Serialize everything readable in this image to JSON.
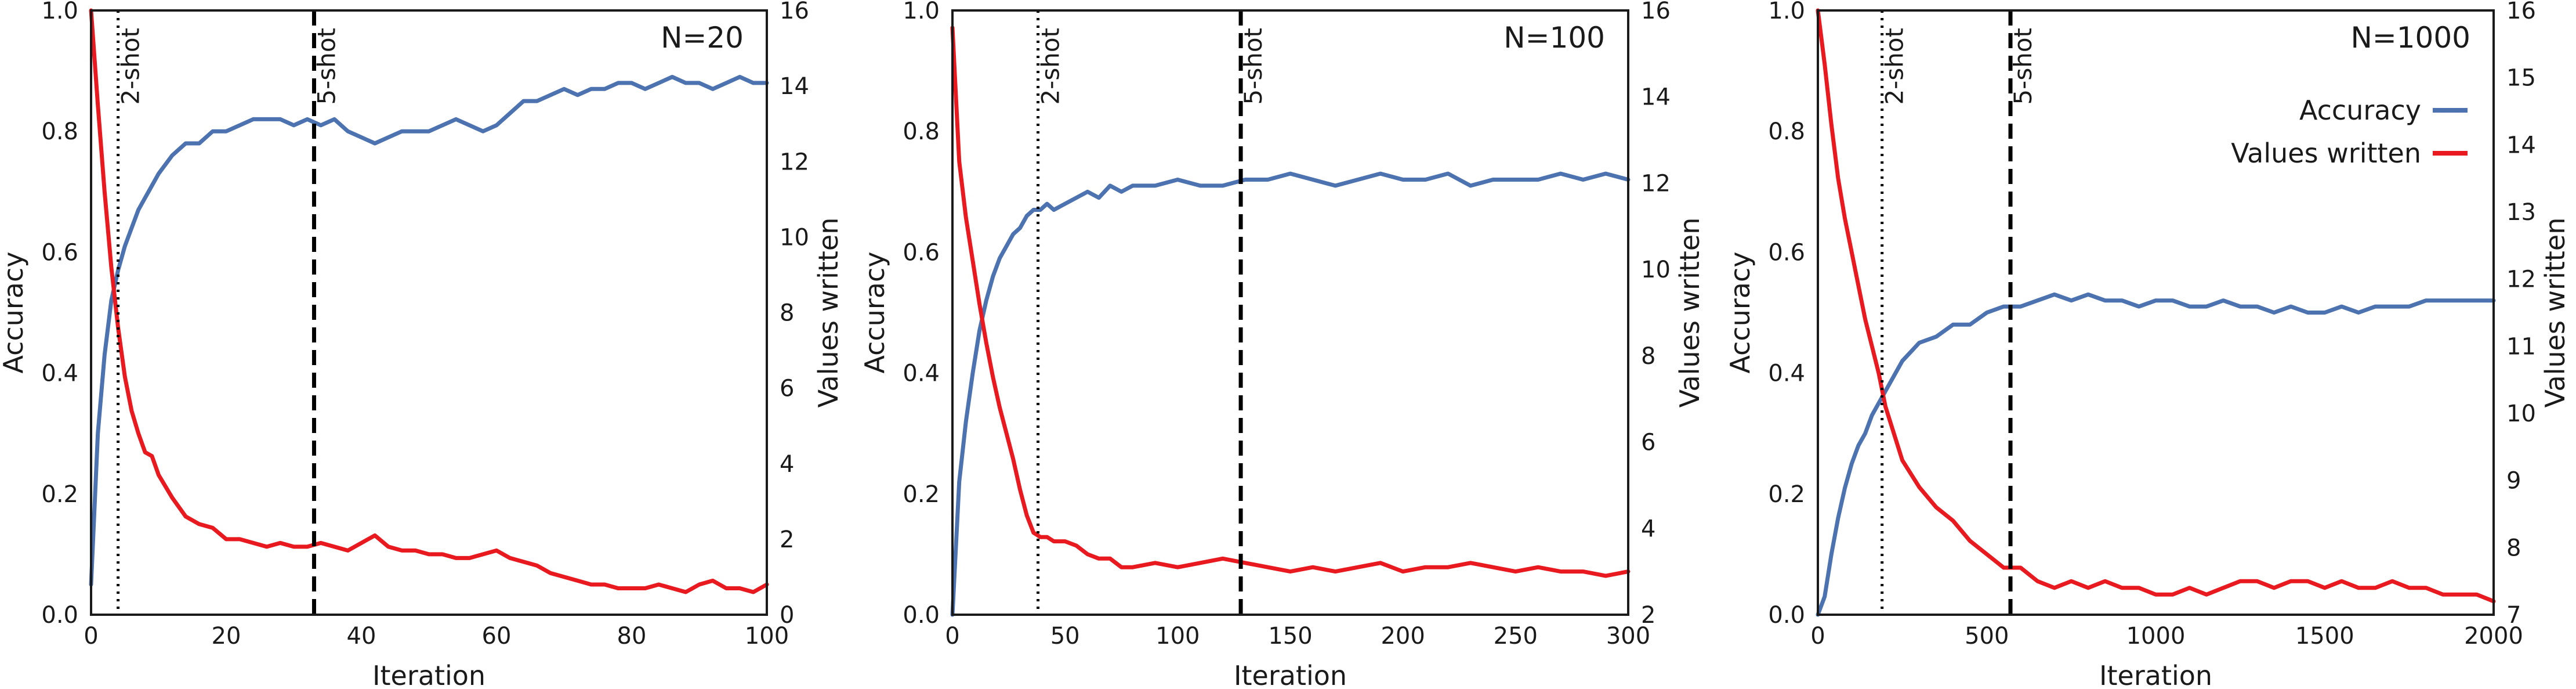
{
  "colors": {
    "accuracy": "#4c72b0",
    "values_written": "#e8191f",
    "axes": "#1a1a1a",
    "background": "#ffffff"
  },
  "chart_data": [
    {
      "type": "line",
      "title": "N=20",
      "xlabel": "Iteration",
      "ylabel": "Accuracy",
      "ylabel_right": "Values written",
      "xlim": [
        0,
        100
      ],
      "ylim": [
        0.0,
        1.0
      ],
      "ylim_right": [
        0,
        16
      ],
      "xticks": [
        0,
        20,
        40,
        60,
        80,
        100
      ],
      "yticks": [
        "0.0",
        "0.2",
        "0.4",
        "0.6",
        "0.8",
        "1.0"
      ],
      "yticks_right": [
        "0",
        "2",
        "4",
        "6",
        "8",
        "10",
        "12",
        "14",
        "16"
      ],
      "grid": false,
      "legend": null,
      "vlines": [
        {
          "x": 4,
          "label": "2-shot",
          "style": "dotted"
        },
        {
          "x": 33,
          "label": "5-shot",
          "style": "dashed"
        }
      ],
      "series": [
        {
          "name": "Accuracy",
          "axis": "left",
          "x": [
            0,
            1,
            2,
            3,
            4,
            5,
            6,
            7,
            8,
            9,
            10,
            12,
            14,
            16,
            18,
            20,
            22,
            24,
            26,
            28,
            30,
            32,
            34,
            36,
            38,
            40,
            42,
            44,
            46,
            48,
            50,
            52,
            54,
            56,
            58,
            60,
            62,
            64,
            66,
            68,
            70,
            72,
            74,
            76,
            78,
            80,
            82,
            84,
            86,
            88,
            90,
            92,
            94,
            96,
            98,
            100
          ],
          "y": [
            0.05,
            0.3,
            0.43,
            0.52,
            0.57,
            0.61,
            0.64,
            0.67,
            0.69,
            0.71,
            0.73,
            0.76,
            0.78,
            0.78,
            0.8,
            0.8,
            0.81,
            0.82,
            0.82,
            0.82,
            0.81,
            0.82,
            0.81,
            0.82,
            0.8,
            0.79,
            0.78,
            0.79,
            0.8,
            0.8,
            0.8,
            0.81,
            0.82,
            0.81,
            0.8,
            0.81,
            0.83,
            0.85,
            0.85,
            0.86,
            0.87,
            0.86,
            0.87,
            0.87,
            0.88,
            0.88,
            0.87,
            0.88,
            0.89,
            0.88,
            0.88,
            0.87,
            0.88,
            0.89,
            0.88,
            0.88
          ]
        },
        {
          "name": "Values written",
          "axis": "right",
          "x": [
            0,
            1,
            2,
            3,
            4,
            5,
            6,
            7,
            8,
            9,
            10,
            12,
            14,
            16,
            18,
            20,
            22,
            24,
            26,
            28,
            30,
            32,
            34,
            36,
            38,
            40,
            42,
            44,
            46,
            48,
            50,
            52,
            54,
            56,
            58,
            60,
            62,
            64,
            66,
            68,
            70,
            72,
            74,
            76,
            78,
            80,
            82,
            84,
            86,
            88,
            90,
            92,
            94,
            96,
            98,
            100
          ],
          "y": [
            16,
            13.5,
            11.2,
            9.2,
            7.6,
            6.3,
            5.4,
            4.8,
            4.3,
            4.2,
            3.7,
            3.1,
            2.6,
            2.4,
            2.3,
            2.0,
            2.0,
            1.9,
            1.8,
            1.9,
            1.8,
            1.8,
            1.9,
            1.8,
            1.7,
            1.9,
            2.1,
            1.8,
            1.7,
            1.7,
            1.6,
            1.6,
            1.5,
            1.5,
            1.6,
            1.7,
            1.5,
            1.4,
            1.3,
            1.1,
            1.0,
            0.9,
            0.8,
            0.8,
            0.7,
            0.7,
            0.7,
            0.8,
            0.7,
            0.6,
            0.8,
            0.9,
            0.7,
            0.7,
            0.6,
            0.8
          ]
        }
      ]
    },
    {
      "type": "line",
      "title": "N=100",
      "xlabel": "Iteration",
      "ylabel": "Accuracy",
      "ylabel_right": "Values written",
      "xlim": [
        0,
        300
      ],
      "ylim": [
        0.0,
        1.0
      ],
      "ylim_right": [
        2,
        16
      ],
      "xticks": [
        0,
        50,
        100,
        150,
        200,
        250,
        300
      ],
      "yticks": [
        "0.0",
        "0.2",
        "0.4",
        "0.6",
        "0.8",
        "1.0"
      ],
      "yticks_right": [
        "2",
        "4",
        "6",
        "8",
        "10",
        "12",
        "14",
        "16"
      ],
      "grid": false,
      "legend": null,
      "vlines": [
        {
          "x": 38,
          "label": "2-shot",
          "style": "dotted"
        },
        {
          "x": 128,
          "label": "5-shot",
          "style": "dashed"
        }
      ],
      "series": [
        {
          "name": "Accuracy",
          "axis": "left",
          "x": [
            0,
            3,
            6,
            9,
            12,
            15,
            18,
            21,
            24,
            27,
            30,
            33,
            36,
            39,
            42,
            45,
            50,
            55,
            60,
            65,
            70,
            75,
            80,
            90,
            100,
            110,
            120,
            130,
            140,
            150,
            160,
            170,
            180,
            190,
            200,
            210,
            220,
            230,
            240,
            250,
            260,
            270,
            280,
            290,
            300
          ],
          "y": [
            0.0,
            0.22,
            0.32,
            0.4,
            0.47,
            0.52,
            0.56,
            0.59,
            0.61,
            0.63,
            0.64,
            0.66,
            0.67,
            0.67,
            0.68,
            0.67,
            0.68,
            0.69,
            0.7,
            0.69,
            0.71,
            0.7,
            0.71,
            0.71,
            0.72,
            0.71,
            0.71,
            0.72,
            0.72,
            0.73,
            0.72,
            0.71,
            0.72,
            0.73,
            0.72,
            0.72,
            0.73,
            0.71,
            0.72,
            0.72,
            0.72,
            0.73,
            0.72,
            0.73,
            0.72
          ]
        },
        {
          "name": "Values written",
          "axis": "right",
          "x": [
            0,
            3,
            6,
            9,
            12,
            15,
            18,
            21,
            24,
            27,
            30,
            33,
            36,
            39,
            42,
            45,
            50,
            55,
            60,
            65,
            70,
            75,
            80,
            90,
            100,
            110,
            120,
            130,
            140,
            150,
            160,
            170,
            180,
            190,
            200,
            210,
            220,
            230,
            240,
            250,
            260,
            270,
            280,
            290,
            300
          ],
          "y": [
            15.6,
            12.5,
            11.2,
            10.2,
            9.2,
            8.3,
            7.5,
            6.8,
            6.2,
            5.6,
            4.9,
            4.3,
            3.9,
            3.8,
            3.8,
            3.7,
            3.7,
            3.6,
            3.4,
            3.3,
            3.3,
            3.1,
            3.1,
            3.2,
            3.1,
            3.2,
            3.3,
            3.2,
            3.1,
            3.0,
            3.1,
            3.0,
            3.1,
            3.2,
            3.0,
            3.1,
            3.1,
            3.2,
            3.1,
            3.0,
            3.1,
            3.0,
            3.0,
            2.9,
            3.0
          ]
        }
      ]
    },
    {
      "type": "line",
      "title": "N=1000",
      "xlabel": "Iteration",
      "ylabel": "Accuracy",
      "ylabel_right": "Values written",
      "xlim": [
        0,
        2000
      ],
      "ylim": [
        0.0,
        1.0
      ],
      "ylim_right": [
        7,
        16
      ],
      "xticks": [
        0,
        500,
        1000,
        1500,
        2000
      ],
      "yticks": [
        "0.0",
        "0.2",
        "0.4",
        "0.6",
        "0.8",
        "1.0"
      ],
      "yticks_right": [
        "7",
        "8",
        "9",
        "10",
        "11",
        "12",
        "13",
        "14",
        "15",
        "16"
      ],
      "grid": false,
      "legend": {
        "position": "top-right",
        "entries": [
          "Accuracy",
          "Values written"
        ]
      },
      "vlines": [
        {
          "x": 190,
          "label": "2-shot",
          "style": "dotted"
        },
        {
          "x": 570,
          "label": "5-shot",
          "style": "dashed"
        }
      ],
      "series": [
        {
          "name": "Accuracy",
          "axis": "left",
          "x": [
            0,
            20,
            40,
            60,
            80,
            100,
            120,
            140,
            160,
            180,
            200,
            250,
            300,
            350,
            400,
            450,
            500,
            550,
            600,
            650,
            700,
            750,
            800,
            850,
            900,
            950,
            1000,
            1050,
            1100,
            1150,
            1200,
            1250,
            1300,
            1350,
            1400,
            1450,
            1500,
            1550,
            1600,
            1650,
            1700,
            1750,
            1800,
            1850,
            1900,
            1950,
            2000
          ],
          "y": [
            0.0,
            0.03,
            0.1,
            0.16,
            0.21,
            0.25,
            0.28,
            0.3,
            0.33,
            0.35,
            0.37,
            0.42,
            0.45,
            0.46,
            0.48,
            0.48,
            0.5,
            0.51,
            0.51,
            0.52,
            0.53,
            0.52,
            0.53,
            0.52,
            0.52,
            0.51,
            0.52,
            0.52,
            0.51,
            0.51,
            0.52,
            0.51,
            0.51,
            0.5,
            0.51,
            0.5,
            0.5,
            0.51,
            0.5,
            0.51,
            0.51,
            0.51,
            0.52,
            0.52,
            0.52,
            0.52,
            0.52
          ]
        },
        {
          "name": "Values written",
          "axis": "right",
          "x": [
            0,
            20,
            40,
            60,
            80,
            100,
            120,
            140,
            160,
            180,
            200,
            250,
            300,
            350,
            400,
            450,
            500,
            550,
            600,
            650,
            700,
            750,
            800,
            850,
            900,
            950,
            1000,
            1050,
            1100,
            1150,
            1200,
            1250,
            1300,
            1350,
            1400,
            1450,
            1500,
            1550,
            1600,
            1650,
            1700,
            1750,
            1800,
            1850,
            1900,
            1950,
            2000
          ],
          "y": [
            16,
            15.2,
            14.3,
            13.5,
            12.9,
            12.4,
            11.9,
            11.4,
            11.0,
            10.6,
            10.1,
            9.3,
            8.9,
            8.6,
            8.4,
            8.1,
            7.9,
            7.7,
            7.7,
            7.5,
            7.4,
            7.5,
            7.4,
            7.5,
            7.4,
            7.4,
            7.3,
            7.3,
            7.4,
            7.3,
            7.4,
            7.5,
            7.5,
            7.4,
            7.5,
            7.5,
            7.4,
            7.5,
            7.4,
            7.4,
            7.5,
            7.4,
            7.4,
            7.3,
            7.3,
            7.3,
            7.2
          ]
        }
      ]
    }
  ]
}
